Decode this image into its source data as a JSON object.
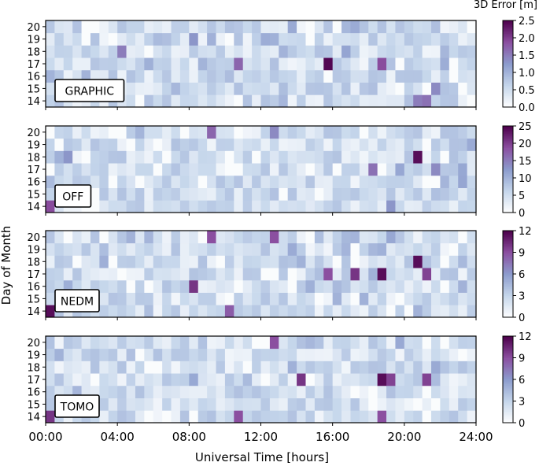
{
  "chart_data": {
    "type": "heatmap",
    "colorbar_title": "3D Error [m]",
    "xlabel": "Universal Time [hours]",
    "ylabel": "Day of Month",
    "x_tick_labels": [
      "00:00",
      "04:00",
      "08:00",
      "12:00",
      "16:00",
      "20:00",
      "24:00"
    ],
    "x_range_hours": [
      0,
      24
    ],
    "days": [
      14,
      15,
      16,
      17,
      18,
      19,
      20
    ],
    "day_labels": [
      "14",
      "15",
      "16",
      "17",
      "18",
      "19",
      "20"
    ],
    "bin_minutes": 30,
    "colormap": [
      "#ffffff",
      "#c5d6eb",
      "#8c9ccd",
      "#8b4fa0",
      "#4d004b"
    ],
    "panels": [
      {
        "label": "GRAPHIC",
        "vmax": 2.5,
        "ticks": [
          0,
          0.5,
          1,
          1.5,
          2,
          2.5
        ],
        "tick_labels": [
          "0.0",
          "0.5",
          "1.0",
          "1.5",
          "2.0",
          "2.5"
        ],
        "hotspots": [
          {
            "day": 17,
            "hour": 15.75,
            "value": 2.45
          },
          {
            "day": 17,
            "hour": 18.75,
            "value": 1.9
          },
          {
            "day": 17,
            "hour": 10.75,
            "value": 1.7
          },
          {
            "day": 18,
            "hour": 4.25,
            "value": 1.5
          },
          {
            "day": 14,
            "hour": 21.25,
            "value": 1.6
          },
          {
            "day": 14,
            "hour": 20.75,
            "value": 1.5
          },
          {
            "day": 15,
            "hour": 21.75,
            "value": 1.4
          },
          {
            "day": 19,
            "hour": 8.25,
            "value": 1.3
          },
          {
            "day": 20,
            "hour": 13.75,
            "value": 1.1
          }
        ]
      },
      {
        "label": "OFF",
        "vmax": 25,
        "ticks": [
          0,
          5,
          10,
          15,
          20,
          25
        ],
        "tick_labels": [
          "0",
          "5",
          "10",
          "15",
          "20",
          "25"
        ],
        "hotspots": [
          {
            "day": 18,
            "hour": 20.75,
            "value": 24
          },
          {
            "day": 14,
            "hour": 0.25,
            "value": 19
          },
          {
            "day": 20,
            "hour": 9.25,
            "value": 17
          },
          {
            "day": 17,
            "hour": 18.25,
            "value": 16
          },
          {
            "day": 20,
            "hour": 12.75,
            "value": 14
          },
          {
            "day": 17,
            "hour": 21.75,
            "value": 14
          },
          {
            "day": 18,
            "hour": 1.25,
            "value": 13
          },
          {
            "day": 14,
            "hour": 19.25,
            "value": 13
          }
        ]
      },
      {
        "label": "NEDM",
        "vmax": 12,
        "ticks": [
          0,
          3,
          6,
          9,
          12
        ],
        "tick_labels": [
          "0",
          "3",
          "6",
          "9",
          "12"
        ],
        "hotspots": [
          {
            "day": 14,
            "hour": 0.25,
            "value": 11.5
          },
          {
            "day": 17,
            "hour": 18.75,
            "value": 11.5
          },
          {
            "day": 18,
            "hour": 20.75,
            "value": 11.5
          },
          {
            "day": 17,
            "hour": 17.25,
            "value": 10
          },
          {
            "day": 16,
            "hour": 8.25,
            "value": 10
          },
          {
            "day": 17,
            "hour": 21.25,
            "value": 9.5
          },
          {
            "day": 20,
            "hour": 9.25,
            "value": 9
          },
          {
            "day": 20,
            "hour": 12.75,
            "value": 9
          },
          {
            "day": 14,
            "hour": 10.25,
            "value": 8.5
          },
          {
            "day": 17,
            "hour": 15.75,
            "value": 9
          }
        ]
      },
      {
        "label": "TOMO",
        "vmax": 12,
        "ticks": [
          0,
          3,
          6,
          9,
          12
        ],
        "tick_labels": [
          "0",
          "3",
          "6",
          "9",
          "12"
        ],
        "hotspots": [
          {
            "day": 17,
            "hour": 18.75,
            "value": 11.5
          },
          {
            "day": 14,
            "hour": 0.25,
            "value": 10
          },
          {
            "day": 17,
            "hour": 14.25,
            "value": 10
          },
          {
            "day": 17,
            "hour": 21.25,
            "value": 9.5
          },
          {
            "day": 20,
            "hour": 12.75,
            "value": 9
          },
          {
            "day": 14,
            "hour": 10.75,
            "value": 9
          },
          {
            "day": 14,
            "hour": 18.75,
            "value": 9
          },
          {
            "day": 17,
            "hour": 19.25,
            "value": 9.5
          }
        ]
      }
    ]
  }
}
